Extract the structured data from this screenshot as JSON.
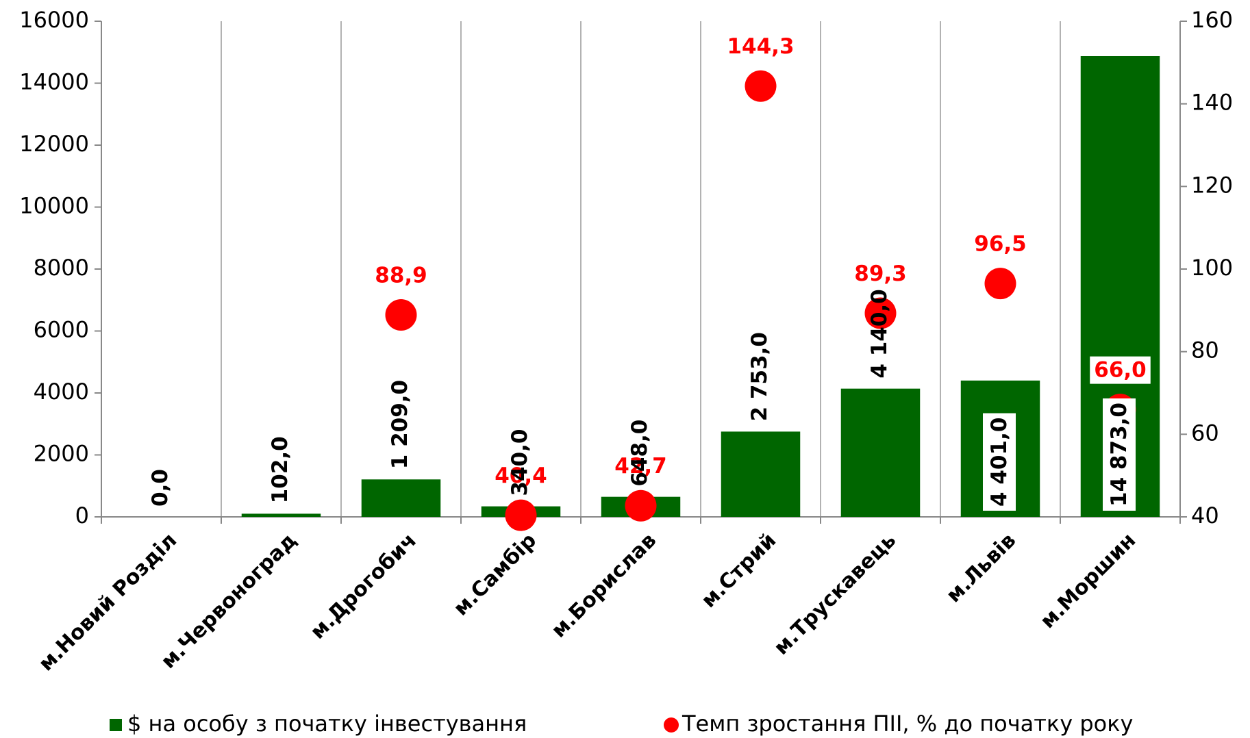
{
  "chart_data": {
    "type": "bar",
    "categories": [
      "м.Новий Розділ",
      "м.Червоноград",
      "м.Дрогобич",
      "м.Самбір",
      "м.Борислав",
      "м.Стрий",
      "м.Трускавець",
      "м.Львів",
      "м.Моршин"
    ],
    "series": [
      {
        "name": "$ на особу з початку інвестування",
        "color": "#006600",
        "type": "bar",
        "values": [
          0,
          102,
          1209,
          340,
          648,
          2753,
          4140,
          4401,
          14873
        ],
        "value_labels": [
          "0,0",
          "102,0",
          "1 209,0",
          "340,0",
          "648,0",
          "2 753,0",
          "4 140,0",
          "4 401,0",
          "14 873,0"
        ]
      },
      {
        "name": "Темп зростання ПІІ, % до початку року",
        "color": "#ff0000",
        "type": "scatter",
        "axis": "y2",
        "values": [
          null,
          null,
          88.9,
          40.4,
          42.7,
          144.3,
          89.3,
          96.5,
          66.0
        ],
        "value_labels": [
          null,
          null,
          "88,9",
          "40,4",
          "42,7",
          "144,3",
          "89,3",
          "96,5",
          "66,0"
        ]
      }
    ],
    "ylim": [
      0,
      16000
    ],
    "yticks": [
      0,
      2000,
      4000,
      6000,
      8000,
      10000,
      12000,
      14000,
      16000
    ],
    "y2lim": [
      40,
      160
    ],
    "y2ticks": [
      40,
      60,
      80,
      100,
      120,
      140,
      160
    ],
    "grid": true,
    "legend": "bottom"
  }
}
